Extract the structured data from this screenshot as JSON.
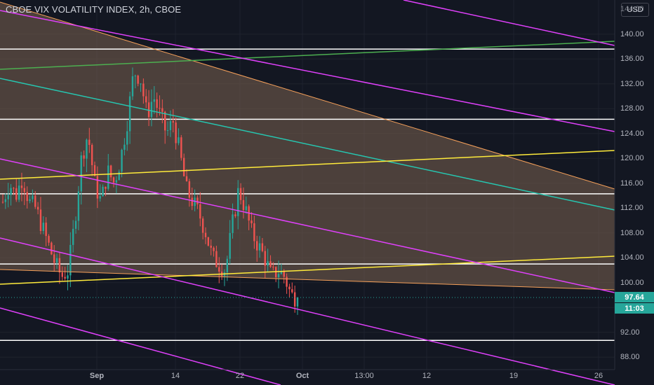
{
  "header": {
    "title": "CBOE VIX VOLATILITY INDEX, 2h, CBOE",
    "currency": "USD"
  },
  "price_axis": {
    "ticks": [
      "140.00",
      "136.00",
      "132.00",
      "128.00",
      "124.00",
      "120.00",
      "116.00",
      "112.00",
      "108.00",
      "104.00",
      "100.00",
      "96.00",
      "92.00",
      "88.00"
    ],
    "partial_top": "144.00"
  },
  "time_axis": {
    "ticks": [
      "Sep",
      "14",
      "22",
      "Oct",
      "13:00",
      "12",
      "19",
      "26"
    ]
  },
  "last_price": {
    "value": "97.64",
    "countdown": "11:03",
    "color": "#26a69a"
  },
  "colors": {
    "background": "#131722",
    "up": "#26a69a",
    "down": "#ef5350",
    "magenta": "#e040fb",
    "yellow": "#ffeb3b",
    "teal": "#26c6b0",
    "green": "#4caf50",
    "orange": "#f5a05a",
    "white": "#ffffff",
    "fill": "#7b6350"
  },
  "chart_data": {
    "type": "candlestick",
    "title": "CBOE VIX VOLATILITY INDEX, 2h, CBOE",
    "ylim": [
      86,
      145.5
    ],
    "x_ticks": [
      "Sep",
      "14",
      "22",
      "Oct",
      "13:00",
      "12",
      "19",
      "26"
    ],
    "last_price": 97.64,
    "horizontal_lines": [
      137.6,
      126.3,
      114.3,
      103.0,
      90.7
    ],
    "price_path": [
      113,
      116,
      114,
      117,
      113,
      112,
      109,
      106,
      103,
      101,
      102,
      110,
      120,
      124,
      116,
      113,
      118,
      116,
      120,
      126,
      134,
      133,
      127,
      130,
      127,
      124,
      126,
      121,
      115,
      113,
      111,
      108,
      104,
      103,
      102,
      109,
      115,
      112,
      108,
      106,
      104,
      101,
      102,
      101,
      98,
      97.6
    ]
  }
}
